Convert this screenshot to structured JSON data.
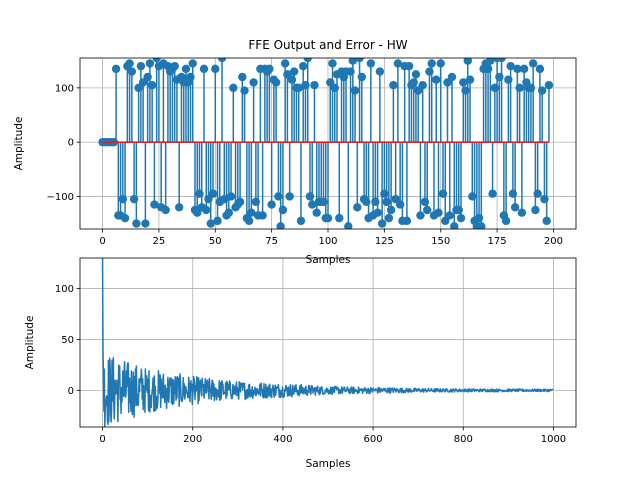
{
  "chart_data": [
    {
      "type": "stem",
      "title": "FFE Output and Error - HW",
      "xlabel": "Samples",
      "ylabel": "Amplitude",
      "xlim": [
        -10,
        210
      ],
      "ylim": [
        -160,
        155
      ],
      "xticks": [
        0,
        25,
        50,
        75,
        100,
        125,
        150,
        175,
        200
      ],
      "yticks": [
        -100,
        0,
        100
      ],
      "grid": true,
      "line_color": "#1f77b4",
      "baseline_color": "#d62728",
      "n_samples": 199,
      "leading_zero_samples": 6,
      "level_magnitudes": [
        95,
        100,
        105,
        110,
        115,
        120,
        125,
        130,
        135,
        140,
        145,
        150,
        155
      ],
      "level_note": "values alternate between roughly +95..+155 and -95..-155 in a pseudo-random binary pattern"
    },
    {
      "type": "line",
      "title": "",
      "xlabel": "Samples",
      "ylabel": "Amplitude",
      "xlim": [
        -50,
        1050
      ],
      "ylim": [
        -36,
        130
      ],
      "xticks": [
        0,
        200,
        400,
        600,
        800,
        1000
      ],
      "yticks": [
        0,
        50,
        100
      ],
      "grid": true,
      "line_color": "#1f77b4",
      "n_samples": 1000,
      "initial_peak": 130,
      "envelope": [
        {
          "x": 5,
          "amp": 38
        },
        {
          "x": 50,
          "amp": 30
        },
        {
          "x": 100,
          "amp": 22
        },
        {
          "x": 200,
          "amp": 14
        },
        {
          "x": 300,
          "amp": 9
        },
        {
          "x": 400,
          "amp": 7
        },
        {
          "x": 500,
          "amp": 4
        },
        {
          "x": 600,
          "amp": 3
        },
        {
          "x": 700,
          "amp": 2
        },
        {
          "x": 800,
          "amp": 1.5
        },
        {
          "x": 1000,
          "amp": 1.2
        }
      ]
    }
  ]
}
